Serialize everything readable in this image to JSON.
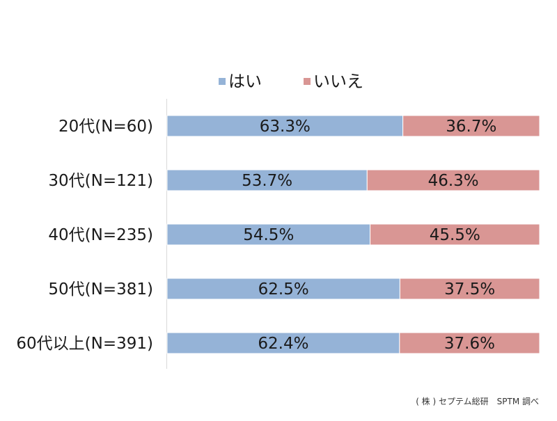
{
  "chart_data": {
    "type": "bar",
    "orientation": "horizontal",
    "stacked": "100%",
    "categories": [
      "20代(N=60)",
      "30代(N=121)",
      "40代(N=235)",
      "50代(N=381)",
      "60代以上(N=391)"
    ],
    "series": [
      {
        "name": "はい",
        "color": "#95b3d7",
        "values": [
          63.3,
          53.7,
          54.5,
          62.5,
          62.4
        ],
        "labels": [
          "63.3%",
          "53.7%",
          "54.5%",
          "62.5%",
          "62.4%"
        ]
      },
      {
        "name": "いいえ",
        "color": "#d99694",
        "values": [
          36.7,
          46.3,
          45.5,
          37.5,
          37.6
        ],
        "labels": [
          "36.7%",
          "46.3%",
          "45.5%",
          "37.5%",
          "37.6%"
        ]
      }
    ],
    "xlim": [
      0,
      100
    ],
    "legend_position": "top",
    "grid": false
  },
  "source_note": "( 株 ) セプテム総研　SPTM 調べ"
}
